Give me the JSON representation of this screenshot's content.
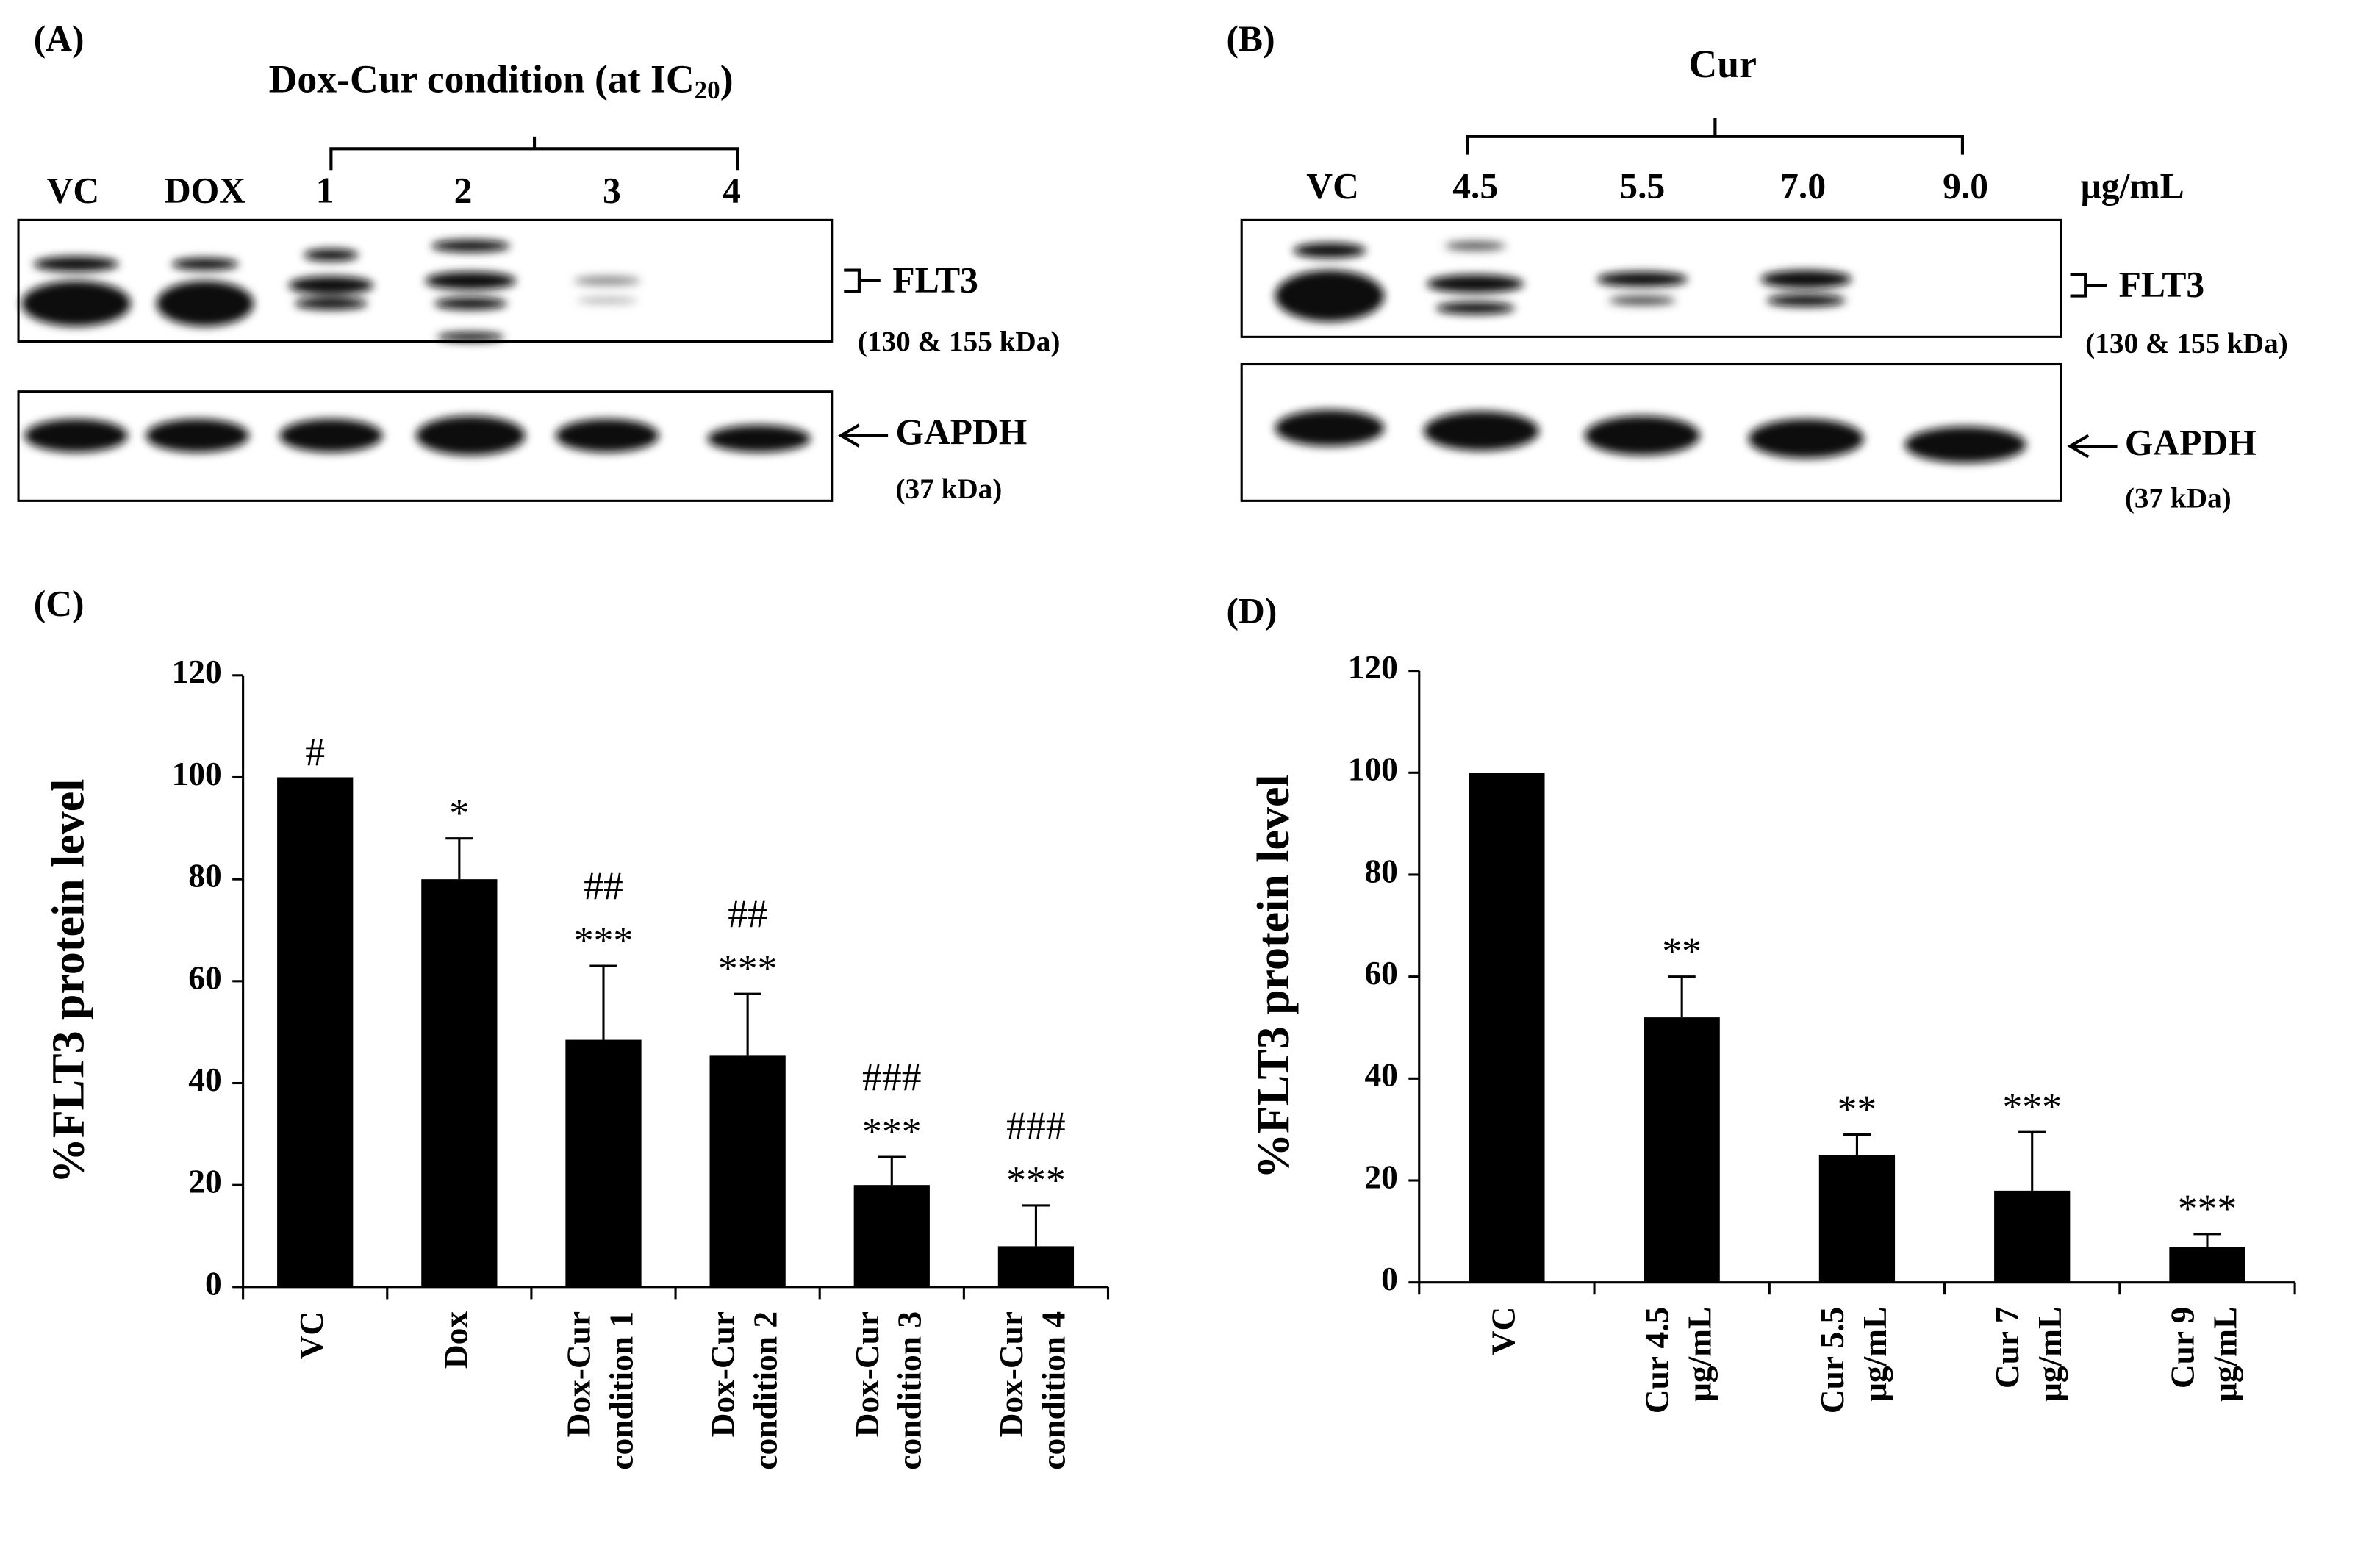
{
  "blots": [
    {
      "panel": "(A)",
      "title": "Dox-Cur  condition  (at IC",
      "title_sub": "20",
      "title_end": ")",
      "lanes": [
        "VC",
        "DOX",
        "1",
        "2",
        "3",
        "4"
      ],
      "target": "FLT3",
      "target_size": "(130 & 155 kDa)",
      "control": "GAPDH",
      "control_size": "(37 kDa)"
    },
    {
      "panel": "(B)",
      "title": "Cur",
      "lanes": [
        "VC",
        "4.5",
        "5.5",
        "7.0",
        "9.0"
      ],
      "unit": "μg/mL",
      "target": "FLT3",
      "target_size": "(130 & 155 kDa)",
      "control": "GAPDH",
      "control_size": "(37 kDa)"
    }
  ],
  "chart_data": [
    {
      "type": "bar",
      "panel": "(C)",
      "y_label": "%FLT3 protein level",
      "color": "#000000",
      "categories": [
        [
          "VC"
        ],
        [
          "Dox"
        ],
        [
          "Dox-Cur",
          "condition 1"
        ],
        [
          "Dox-Cur",
          "condition 2"
        ],
        [
          "Dox-Cur",
          "condition 3"
        ],
        [
          "Dox-Cur",
          "condition 4"
        ]
      ],
      "values": [
        100,
        80,
        48.5,
        45.5,
        20,
        8
      ],
      "errors": [
        null,
        8,
        14.5,
        12,
        5.5,
        8
      ],
      "annotations": [
        [
          "#"
        ],
        [
          "*"
        ],
        [
          "##",
          "***"
        ],
        [
          "##",
          "***"
        ],
        [
          "###",
          "***"
        ],
        [
          "###",
          "***"
        ]
      ],
      "ylim": [
        0,
        120
      ],
      "yticks": [
        0,
        20,
        40,
        60,
        80,
        100,
        120
      ]
    },
    {
      "type": "bar",
      "panel": "(D)",
      "y_label": "%FLT3 protein level",
      "color": "#000000",
      "categories": [
        [
          "VC"
        ],
        [
          "Cur 4.5",
          "μg/mL"
        ],
        [
          "Cur 5.5",
          "μg/mL"
        ],
        [
          "Cur 7",
          "μg/mL"
        ],
        [
          "Cur 9",
          "μg/mL"
        ]
      ],
      "values": [
        100,
        52,
        25,
        18,
        7
      ],
      "errors": [
        null,
        8,
        4,
        11.5,
        2.5
      ],
      "annotations": [
        [],
        [
          "**"
        ],
        [
          "**"
        ],
        [
          "***"
        ],
        [
          "***"
        ]
      ],
      "ylim": [
        0,
        120
      ],
      "yticks": [
        0,
        20,
        40,
        60,
        80,
        100,
        120
      ]
    }
  ]
}
